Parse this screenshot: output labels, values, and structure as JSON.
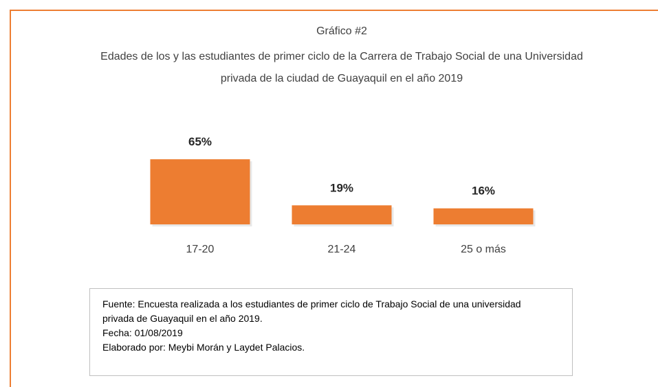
{
  "chart_data": {
    "type": "bar",
    "title": "Gráfico #2",
    "subtitle": "Edades de los y las estudiantes de primer ciclo de la Carrera de Trabajo Social de una Universidad privada de la ciudad de Guayaquil en el año 2019",
    "categories": [
      "17-20",
      "21-24",
      "25 o más"
    ],
    "values": [
      65,
      19,
      16
    ],
    "value_labels": [
      "65%",
      "19%",
      "16%"
    ],
    "color": "#ed7d31",
    "notes": [
      "Fuente: Encuesta realizada a los estudiantes de primer ciclo de Trabajo Social de una universidad privada de Guayaquil en el año 2019.",
      "Fecha: 01/08/2019",
      "Elaborado por: Meybi Morán y Laydet Palacios."
    ]
  }
}
